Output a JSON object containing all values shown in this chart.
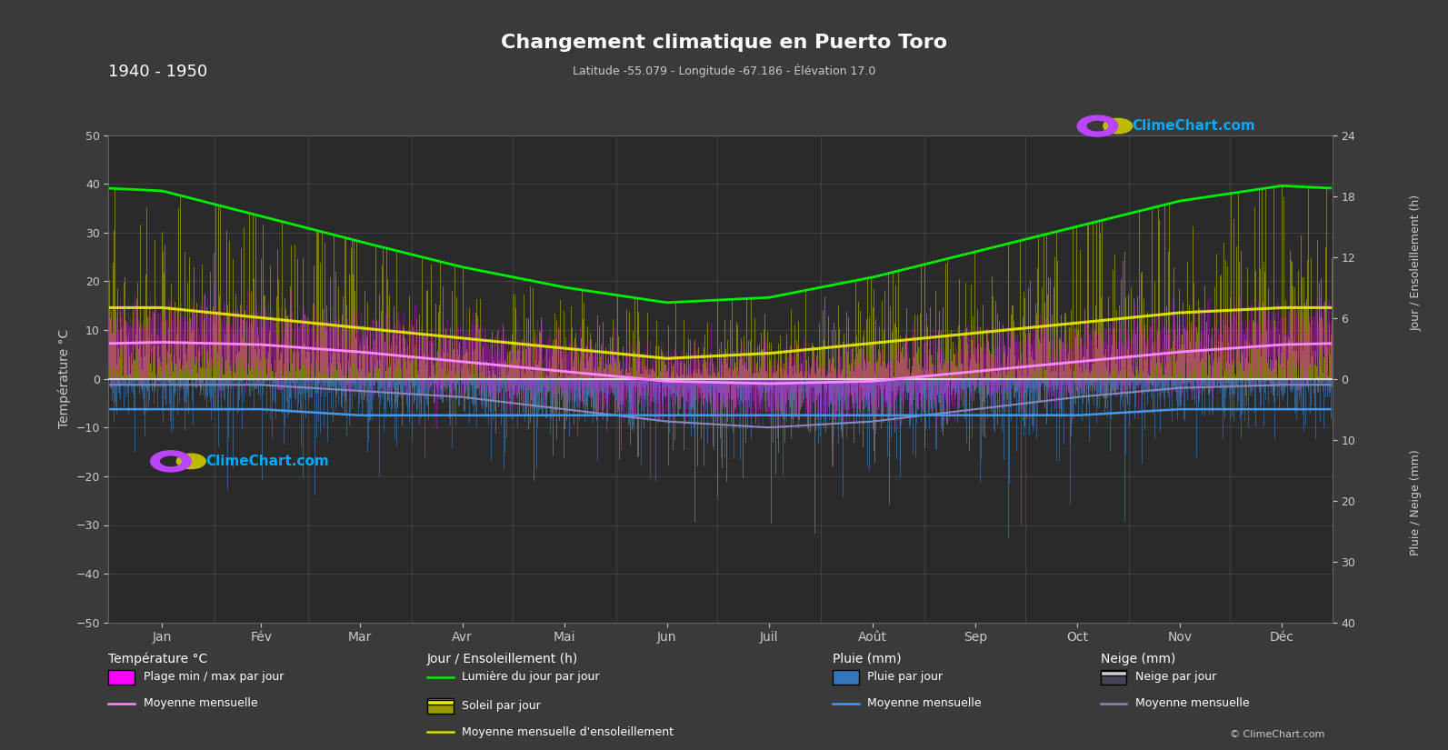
{
  "title": "Changement climatique en Puerto Toro",
  "subtitle": "Latitude -55.079 - Longitude -67.186 - Élévation 17.0",
  "years_label": "1940 - 1950",
  "bg_color": "#3a3a3a",
  "plot_bg_color": "#2a2a2a",
  "grid_color": "#606060",
  "months": [
    "Jan",
    "Fév",
    "Mar",
    "Avr",
    "Mai",
    "Jun",
    "Juil",
    "Août",
    "Sep",
    "Oct",
    "Nov",
    "Déc"
  ],
  "temp_ylim": [
    -50,
    50
  ],
  "temp_yticks": [
    -50,
    -40,
    -30,
    -20,
    -10,
    0,
    10,
    20,
    30,
    40,
    50
  ],
  "right_top_ticks_h": [
    0,
    6,
    12,
    18,
    24
  ],
  "right_bot_ticks_mm": [
    0,
    10,
    20,
    30,
    40
  ],
  "temp_mean": [
    7.5,
    7.0,
    5.5,
    3.5,
    1.5,
    -0.5,
    -1.0,
    -0.5,
    1.5,
    3.5,
    5.5,
    7.0
  ],
  "temp_max_mean": [
    12.0,
    11.5,
    9.5,
    7.5,
    5.0,
    3.0,
    2.5,
    3.0,
    5.0,
    7.5,
    9.5,
    11.5
  ],
  "temp_min_mean": [
    3.0,
    2.5,
    1.0,
    -0.5,
    -2.0,
    -4.0,
    -5.0,
    -4.5,
    -2.0,
    -0.5,
    1.0,
    2.5
  ],
  "daylight_hours": [
    18.5,
    16.0,
    13.5,
    11.0,
    9.0,
    7.5,
    8.0,
    10.0,
    12.5,
    15.0,
    17.5,
    19.0
  ],
  "sunshine_mean": [
    7.0,
    6.0,
    5.0,
    4.0,
    3.0,
    2.0,
    2.5,
    3.5,
    4.5,
    5.5,
    6.5,
    7.0
  ],
  "precip_mean_mm": [
    5.0,
    5.0,
    6.0,
    6.0,
    6.0,
    6.0,
    6.0,
    6.0,
    6.0,
    6.0,
    5.0,
    5.0
  ],
  "snow_mean_mm": [
    1.0,
    1.0,
    2.0,
    3.0,
    5.0,
    7.0,
    8.0,
    7.0,
    5.0,
    3.0,
    1.5,
    1.0
  ],
  "n_years": 10,
  "temp_color_magenta": "#ff00ff",
  "temp_line_color": "#ff88ff",
  "daylight_color": "#00ee00",
  "sunshine_bar_color_top": "#aaaa00",
  "sunshine_bar_color_bot": "#777700",
  "precip_bar_color": "#3377bb",
  "snow_bar_color_top": "#bbbbbb",
  "snow_bar_color_bot": "#444455",
  "precip_line_color": "#4499ee",
  "snow_line_color": "#8888bb",
  "sunshine_line_color": "#dddd00",
  "climechart_color": "#00aaff",
  "label_color": "#cccccc",
  "white": "#ffffff"
}
